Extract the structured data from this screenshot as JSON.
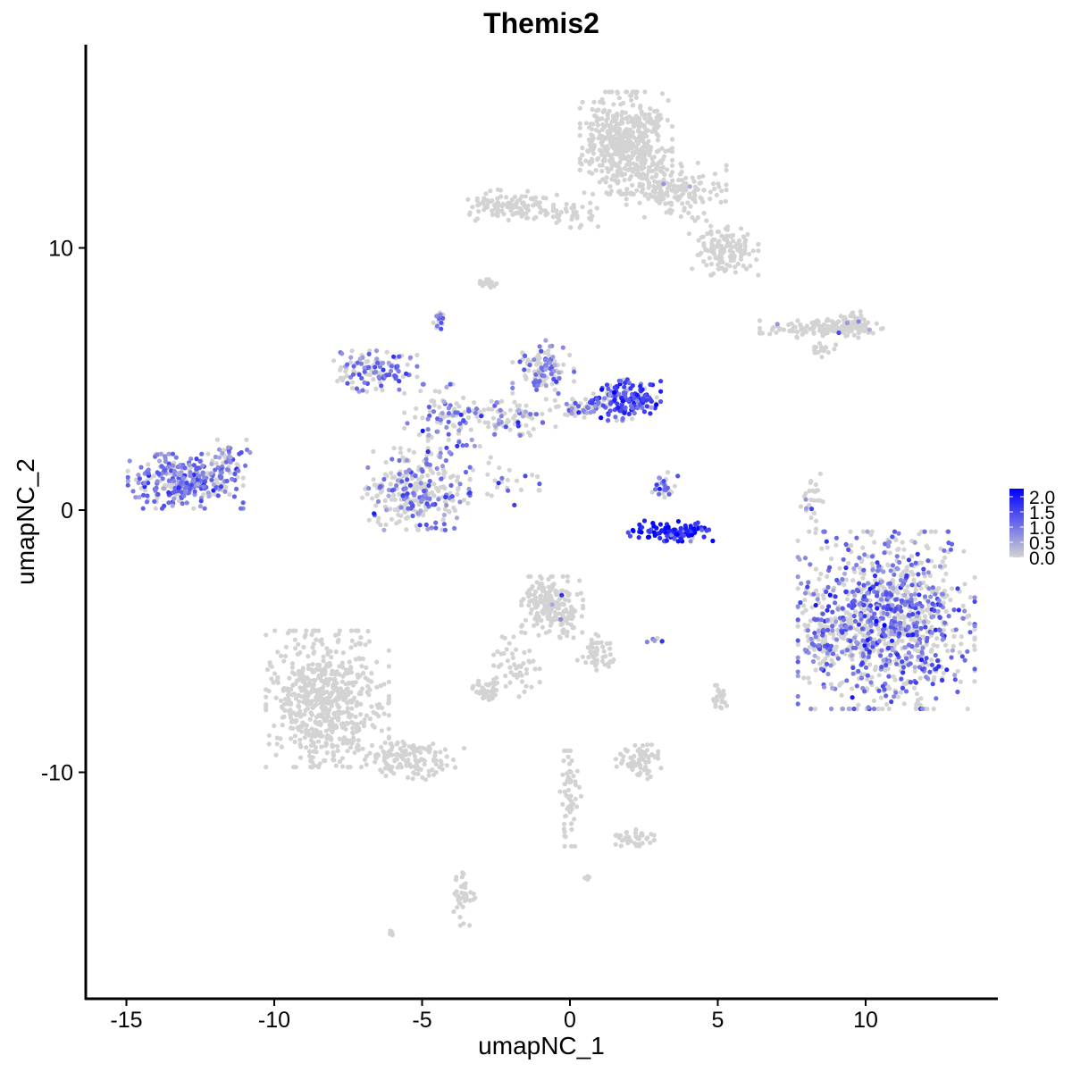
{
  "chart_data": {
    "type": "scatter",
    "title": "Themis2",
    "xlabel": "umapNC_1",
    "ylabel": "umapNC_2",
    "xlim": [
      -16.4,
      14.4
    ],
    "ylim": [
      -18.6,
      17.7
    ],
    "xticks": [
      -15,
      -10,
      -5,
      0,
      5,
      10
    ],
    "yticks": [
      -10,
      0,
      10
    ],
    "grid": false,
    "color_low": "#d3d3d3",
    "color_high": "#0000ff",
    "legend": {
      "placement": "right",
      "ticks": [
        "2.0",
        "1.5",
        "1.0",
        "0.5",
        "0.0"
      ],
      "range": [
        0,
        2.0
      ]
    },
    "clusters_columns": [
      "x_center",
      "y_center",
      "x_spread",
      "y_spread",
      "n_cells",
      "fraction_expressing",
      "mean_expression"
    ],
    "clusters": [
      [
        1.9,
        14.0,
        1.2,
        1.5,
        520,
        0.0,
        0
      ],
      [
        3.6,
        12.2,
        1.3,
        0.8,
        160,
        0.03,
        0.8
      ],
      [
        5.2,
        10.0,
        0.9,
        0.8,
        130,
        0.02,
        0.8
      ],
      [
        -2.0,
        11.6,
        1.2,
        0.5,
        110,
        0.0,
        0
      ],
      [
        0.2,
        11.3,
        0.8,
        0.4,
        40,
        0.0,
        0
      ],
      [
        -13.0,
        1.1,
        1.5,
        0.8,
        320,
        0.7,
        0.9
      ],
      [
        -11.6,
        1.9,
        0.6,
        0.6,
        40,
        0.5,
        0.8
      ],
      [
        -6.6,
        5.3,
        1.1,
        0.6,
        120,
        0.5,
        0.9
      ],
      [
        -5.2,
        0.8,
        1.4,
        1.2,
        300,
        0.35,
        0.9
      ],
      [
        -4.3,
        3.5,
        1.0,
        1.0,
        90,
        0.4,
        0.9
      ],
      [
        -2.0,
        3.5,
        1.3,
        0.5,
        90,
        0.35,
        0.9
      ],
      [
        -0.9,
        5.3,
        0.8,
        0.9,
        110,
        0.5,
        0.9
      ],
      [
        1.9,
        4.2,
        0.9,
        0.6,
        170,
        0.75,
        1.3
      ],
      [
        0.3,
        3.9,
        0.8,
        0.3,
        60,
        0.3,
        0.9
      ],
      [
        -4.4,
        7.3,
        0.2,
        0.3,
        15,
        0.5,
        0.9
      ],
      [
        -2.7,
        8.6,
        0.3,
        0.15,
        15,
        0.0,
        0
      ],
      [
        -2.2,
        1.1,
        0.9,
        0.7,
        25,
        0.2,
        0.9
      ],
      [
        3.4,
        -0.8,
        1.1,
        0.3,
        110,
        0.95,
        1.6
      ],
      [
        3.2,
        0.9,
        0.35,
        0.5,
        25,
        0.7,
        1.2
      ],
      [
        10.7,
        -4.2,
        2.3,
        2.6,
        1100,
        0.45,
        1.0
      ],
      [
        8.5,
        -4.8,
        0.4,
        1.2,
        60,
        0.3,
        0.9
      ],
      [
        8.2,
        0.3,
        0.3,
        0.9,
        30,
        0.1,
        0.8
      ],
      [
        -8.2,
        -7.2,
        1.6,
        2.0,
        620,
        0.0,
        0
      ],
      [
        -5.4,
        -9.5,
        1.4,
        0.6,
        130,
        0.0,
        0
      ],
      [
        -0.6,
        -3.7,
        0.8,
        0.9,
        200,
        0.02,
        0.8
      ],
      [
        0.9,
        -5.4,
        0.5,
        0.6,
        50,
        0.0,
        0
      ],
      [
        -1.8,
        -6.0,
        0.6,
        0.9,
        50,
        0.0,
        0
      ],
      [
        -2.8,
        -6.9,
        0.4,
        0.3,
        40,
        0.02,
        0.8
      ],
      [
        2.3,
        -9.6,
        0.6,
        0.5,
        70,
        0.02,
        0.8
      ],
      [
        8.5,
        6.9,
        1.6,
        0.25,
        120,
        0.03,
        0.8
      ],
      [
        9.5,
        7.2,
        0.6,
        0.3,
        50,
        0.03,
        0.8
      ],
      [
        8.6,
        6.1,
        0.3,
        0.2,
        15,
        0.0,
        0
      ],
      [
        0.0,
        -11.0,
        0.3,
        1.4,
        60,
        0.0,
        0
      ],
      [
        2.2,
        -12.5,
        0.5,
        0.3,
        40,
        0.0,
        0
      ],
      [
        -3.6,
        -14.8,
        0.3,
        0.8,
        40,
        0.0,
        0
      ],
      [
        5.1,
        -7.2,
        0.2,
        0.4,
        25,
        0.1,
        0.8
      ],
      [
        3.0,
        -5.0,
        0.3,
        0.1,
        8,
        0.2,
        0.8
      ],
      [
        -6.0,
        -16.1,
        0.1,
        0.1,
        5,
        0.0,
        0
      ],
      [
        0.6,
        -14.0,
        0.1,
        0.1,
        5,
        0.0,
        0
      ]
    ]
  }
}
